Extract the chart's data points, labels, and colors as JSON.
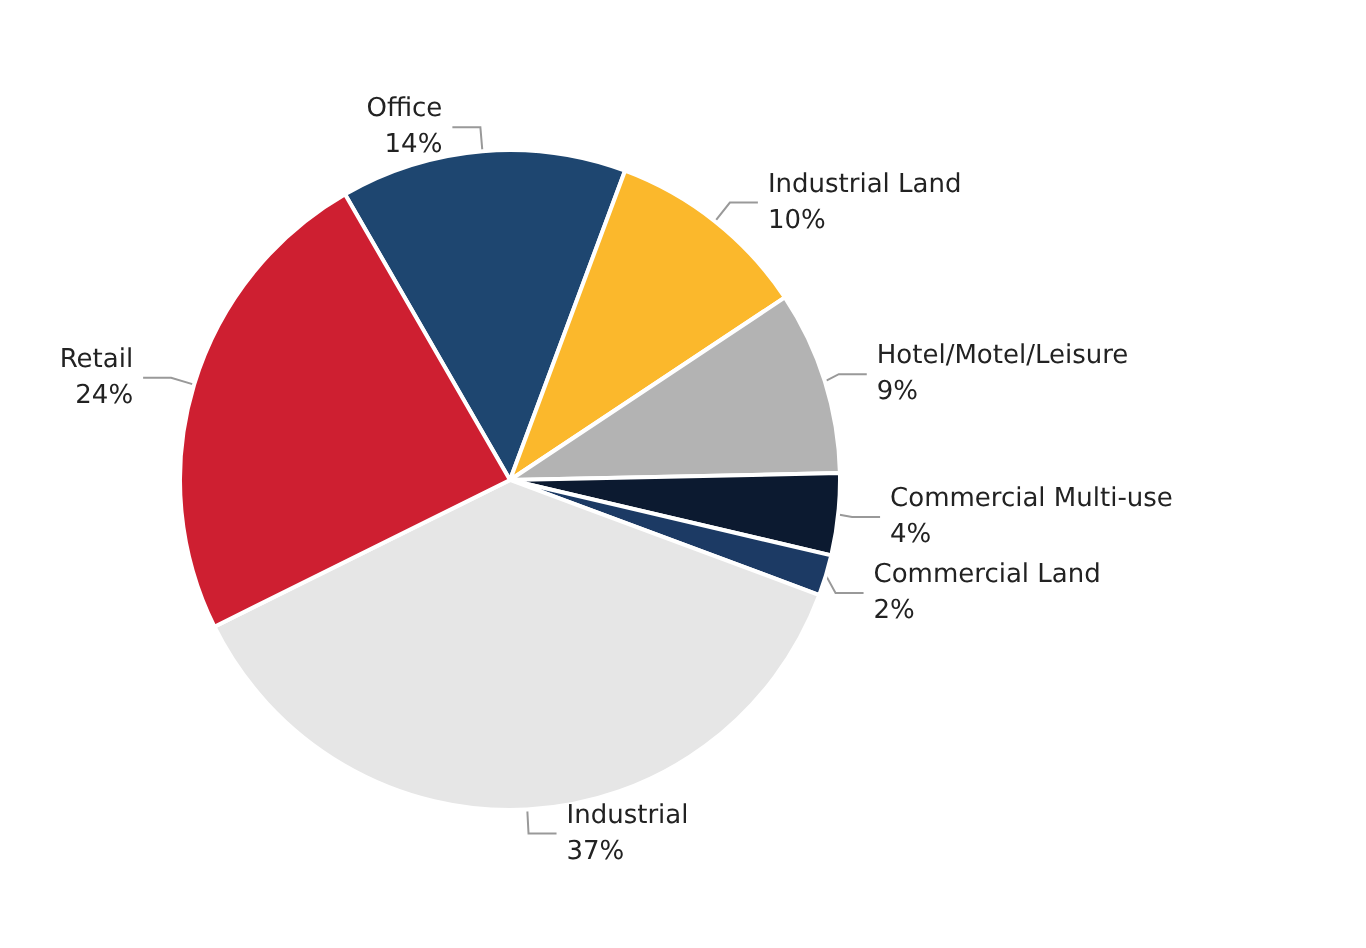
{
  "chart_data": {
    "type": "pie",
    "categories": [
      "Office",
      "Industrial Land",
      "Hotel/Motel/Leisure",
      "Commercial Multi-use",
      "Commercial Land",
      "Industrial",
      "Retail"
    ],
    "values": [
      14,
      10,
      9,
      4,
      2,
      37,
      24
    ],
    "value_labels": [
      "14%",
      "10%",
      "9%",
      "4%",
      "2%",
      "37%",
      "24%"
    ],
    "colors": [
      "#1e4670",
      "#fbb82c",
      "#b3b3b3",
      "#0c1a30",
      "#1c3a64",
      "#e6e6e6",
      "#ce1f31"
    ],
    "legend": false
  }
}
